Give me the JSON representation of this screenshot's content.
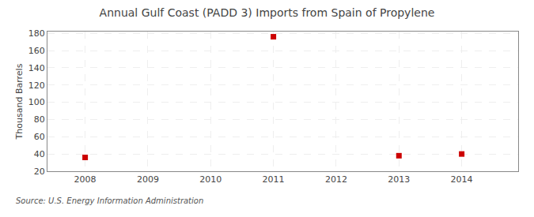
{
  "chart_data": {
    "type": "scatter",
    "title": "Annual Gulf Coast (PADD 3) Imports from Spain of Propylene",
    "ylabel": "Thousand Barrels",
    "annotation": "Source: U.S. Energy Information Administration",
    "x": [
      2008,
      2011,
      2013,
      2014
    ],
    "values": [
      36,
      176,
      38,
      40
    ],
    "color": "#cc0000",
    "marker": "square",
    "xlim": [
      2007.4,
      2014.9
    ],
    "ylim": [
      20,
      182
    ],
    "xticks": [
      2008,
      2009,
      2010,
      2011,
      2012,
      2013,
      2014
    ],
    "yticks": [
      20,
      40,
      60,
      80,
      100,
      120,
      140,
      160,
      180
    ],
    "grid": true
  }
}
